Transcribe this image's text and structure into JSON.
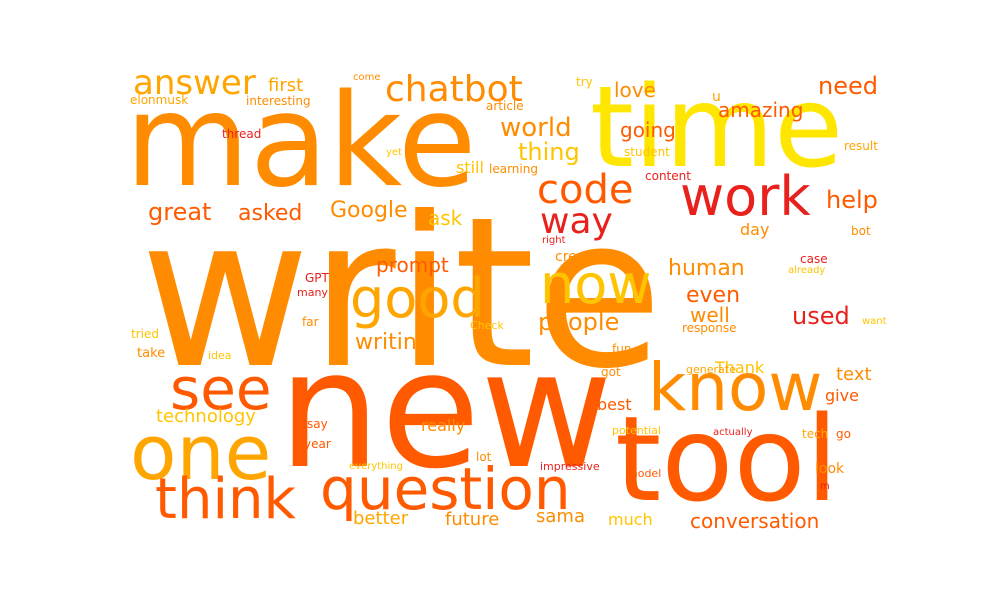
{
  "colors": {
    "red": "#e8211d",
    "orange_red": "#ff5a00",
    "orange": "#ff8c00",
    "light_orange": "#ffa500",
    "gold": "#ffc400",
    "yellow": "#ffe600"
  },
  "words": [
    {
      "text": "write",
      "color": "orange"
    },
    {
      "text": "new",
      "color": "orange_red"
    },
    {
      "text": "make",
      "color": "orange"
    },
    {
      "text": "time",
      "color": "yellow"
    },
    {
      "text": "tool",
      "color": "orange_red"
    },
    {
      "text": "know",
      "color": "orange"
    },
    {
      "text": "one",
      "color": "light_orange"
    },
    {
      "text": "question",
      "color": "orange_red"
    },
    {
      "text": "think",
      "color": "orange_red"
    },
    {
      "text": "see",
      "color": "orange_red"
    },
    {
      "text": "good",
      "color": "light_orange"
    },
    {
      "text": "now",
      "color": "gold"
    },
    {
      "text": "work",
      "color": "red"
    },
    {
      "text": "code",
      "color": "orange_red"
    },
    {
      "text": "way",
      "color": "red"
    },
    {
      "text": "answer",
      "color": "light_orange"
    },
    {
      "text": "chatbot",
      "color": "orange"
    },
    {
      "text": "world",
      "color": "orange"
    },
    {
      "text": "thing",
      "color": "gold"
    },
    {
      "text": "great",
      "color": "orange_red"
    },
    {
      "text": "asked",
      "color": "orange_red"
    },
    {
      "text": "Google",
      "color": "orange"
    },
    {
      "text": "ask",
      "color": "gold"
    },
    {
      "text": "help",
      "color": "orange_red"
    },
    {
      "text": "people",
      "color": "orange"
    },
    {
      "text": "human",
      "color": "orange"
    },
    {
      "text": "even",
      "color": "orange_red"
    },
    {
      "text": "well",
      "color": "orange"
    },
    {
      "text": "used",
      "color": "red"
    },
    {
      "text": "prompt",
      "color": "orange_red"
    },
    {
      "text": "writing",
      "color": "orange"
    },
    {
      "text": "conversation",
      "color": "orange_red"
    },
    {
      "text": "future",
      "color": "orange"
    },
    {
      "text": "better",
      "color": "light_orange"
    },
    {
      "text": "sama",
      "color": "orange"
    },
    {
      "text": "much",
      "color": "gold"
    },
    {
      "text": "amazing",
      "color": "orange_red"
    },
    {
      "text": "need",
      "color": "orange_red"
    },
    {
      "text": "love",
      "color": "orange"
    },
    {
      "text": "going",
      "color": "orange_red"
    },
    {
      "text": "first",
      "color": "light_orange"
    },
    {
      "text": "elonmusk",
      "color": "light_orange"
    },
    {
      "text": "interesting",
      "color": "orange"
    },
    {
      "text": "come",
      "color": "orange"
    },
    {
      "text": "try",
      "color": "gold"
    },
    {
      "text": "u",
      "color": "light_orange"
    },
    {
      "text": "article",
      "color": "orange"
    },
    {
      "text": "thread",
      "color": "red"
    },
    {
      "text": "yet",
      "color": "gold"
    },
    {
      "text": "learning",
      "color": "orange"
    },
    {
      "text": "student",
      "color": "gold"
    },
    {
      "text": "result",
      "color": "light_orange"
    },
    {
      "text": "still",
      "color": "gold"
    },
    {
      "text": "content",
      "color": "red"
    },
    {
      "text": "day",
      "color": "orange"
    },
    {
      "text": "right",
      "color": "red"
    },
    {
      "text": "bot",
      "color": "orange"
    },
    {
      "text": "create",
      "color": "orange"
    },
    {
      "text": "case",
      "color": "red"
    },
    {
      "text": "already",
      "color": "gold"
    },
    {
      "text": "GPT",
      "color": "red"
    },
    {
      "text": "many",
      "color": "red"
    },
    {
      "text": "far",
      "color": "orange"
    },
    {
      "text": "tried",
      "color": "gold"
    },
    {
      "text": "Check",
      "color": "gold"
    },
    {
      "text": "want",
      "color": "gold"
    },
    {
      "text": "response",
      "color": "orange"
    },
    {
      "text": "take",
      "color": "orange"
    },
    {
      "text": "idea",
      "color": "gold"
    },
    {
      "text": "fun",
      "color": "orange"
    },
    {
      "text": "Thank",
      "color": "gold"
    },
    {
      "text": "generate",
      "color": "light_orange"
    },
    {
      "text": "text",
      "color": "orange"
    },
    {
      "text": "give",
      "color": "orange_red"
    },
    {
      "text": "got",
      "color": "orange"
    },
    {
      "text": "technology",
      "color": "gold"
    },
    {
      "text": "best",
      "color": "orange_red"
    },
    {
      "text": "say",
      "color": "orange_red"
    },
    {
      "text": "really",
      "color": "orange"
    },
    {
      "text": "potential",
      "color": "gold"
    },
    {
      "text": "actually",
      "color": "red"
    },
    {
      "text": "tech",
      "color": "light_orange"
    },
    {
      "text": "go",
      "color": "orange_red"
    },
    {
      "text": "year",
      "color": "orange_red"
    },
    {
      "text": "lot",
      "color": "orange"
    },
    {
      "text": "everything",
      "color": "gold"
    },
    {
      "text": "impressive",
      "color": "red"
    },
    {
      "text": "model",
      "color": "orange_red"
    },
    {
      "text": "look",
      "color": "orange"
    },
    {
      "text": "m",
      "color": "red"
    }
  ]
}
